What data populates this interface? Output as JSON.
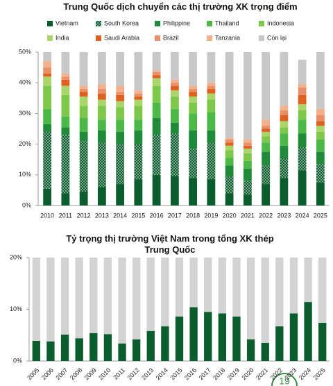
{
  "chart_data": [
    {
      "type": "stacked_bar",
      "title": "Trung Quốc dịch chuyển các thị trường XK trọng điểm",
      "categories": [
        "2010",
        "2011",
        "2012",
        "2013",
        "2014",
        "2015",
        "2016",
        "2017",
        "2018",
        "2019",
        "2020",
        "2021",
        "2022",
        "2023",
        "2024",
        "2025"
      ],
      "series": [
        {
          "name": "Vietnam",
          "color": "#0b5d2e",
          "values": [
            5.5,
            4,
            4.5,
            6,
            7,
            8.5,
            10,
            9.5,
            9,
            8.5,
            4,
            3.5,
            7,
            9,
            11.5,
            7.5
          ]
        },
        {
          "name": "South Korea",
          "color": "#0b5d2e",
          "pattern": "dots",
          "values": [
            18.5,
            19,
            16.5,
            14.5,
            13,
            11.5,
            13,
            14,
            9.5,
            12,
            5.5,
            4.5,
            6,
            6.5,
            7.5,
            6
          ]
        },
        {
          "name": "Philippine",
          "color": "#1f8a3a",
          "values": [
            2.5,
            2.5,
            3,
            4,
            4,
            4.5,
            5.5,
            3.5,
            6,
            4,
            3.5,
            4,
            4.5,
            4,
            4.5,
            4
          ]
        },
        {
          "name": "Thailand",
          "color": "#4cb848",
          "values": [
            5,
            3.5,
            4.5,
            3.5,
            4,
            3.5,
            5,
            4.5,
            5.5,
            6,
            2.5,
            2.5,
            3,
            4,
            4.5,
            4
          ]
        },
        {
          "name": "Indonesia",
          "color": "#7dc84a",
          "values": [
            7.5,
            7,
            4,
            4.5,
            4,
            4.5,
            5.5,
            4,
            3.5,
            4,
            2.5,
            2.5,
            2,
            2,
            3,
            2.5
          ]
        },
        {
          "name": "India",
          "color": "#a9d56a",
          "values": [
            3,
            3,
            3,
            2,
            2,
            2,
            2.5,
            2,
            2,
            2,
            1.5,
            1.5,
            1.5,
            2,
            2,
            2
          ]
        },
        {
          "name": "Saudi Arabia",
          "color": "#e06020",
          "values": [
            1,
            2,
            1.5,
            2,
            2,
            1,
            1,
            1.5,
            1.5,
            1.5,
            1,
            1,
            1,
            2,
            3,
            1.5
          ]
        },
        {
          "name": "Brazil",
          "color": "#e8906a",
          "values": [
            2,
            1,
            1,
            1.5,
            1,
            1,
            1,
            1,
            1,
            1,
            1,
            1,
            1,
            1.5,
            2.5,
            2
          ]
        },
        {
          "name": "Tanzania",
          "color": "#f4b08a",
          "values": [
            2,
            1,
            1,
            1.5,
            2,
            1,
            0.5,
            1,
            1,
            1,
            0.5,
            1,
            2,
            1.5,
            1,
            2
          ]
        },
        {
          "name": "Còn lại",
          "color": "#c8c8c8",
          "values": [
            3,
            7,
            11,
            10.5,
            11,
            12.5,
            6,
            9,
            11,
            10,
            28,
            28.5,
            22,
            17.5,
            8,
            18.5
          ]
        }
      ],
      "ylim": [
        0,
        50
      ],
      "yticks": [
        {
          "value": 0,
          "label": "0%"
        },
        {
          "value": 10,
          "label": "10%"
        },
        {
          "value": 20,
          "label": "20%"
        },
        {
          "value": 30,
          "label": "30%"
        },
        {
          "value": 40,
          "label": "40%"
        },
        {
          "value": 50,
          "label": "50%"
        }
      ],
      "legend": "top"
    },
    {
      "type": "stacked_bar",
      "title": "Tỷ trọng thị trường Việt Nam trong tổng XK thép Trung Quốc",
      "categories": [
        "2005",
        "2006",
        "2007",
        "2008",
        "2009",
        "2010",
        "2011",
        "2012",
        "2013",
        "2014",
        "2015",
        "2016",
        "2017",
        "2018",
        "2019",
        "2020",
        "2021",
        "2022",
        "2023",
        "2024",
        "2025"
      ],
      "series": [
        {
          "color": "#0b5d2e",
          "values": [
            3.9,
            3.8,
            5.1,
            4.4,
            5.4,
            5.2,
            3.4,
            4.2,
            5.8,
            6.7,
            8.6,
            10.4,
            9.5,
            9.2,
            8.6,
            4.2,
            3.5,
            6.7,
            9.2,
            11.4,
            7.4
          ]
        },
        {
          "color": "#d3d3d3",
          "values": [
            16.1,
            16.2,
            14.9,
            15.6,
            14.6,
            14.8,
            16.6,
            15.8,
            14.2,
            13.3,
            11.4,
            9.6,
            10.5,
            10.8,
            11.4,
            15.8,
            16.5,
            13.3,
            10.8,
            8.6,
            12.6
          ]
        }
      ],
      "ylim": [
        0,
        20
      ],
      "yticks": [
        {
          "value": 0,
          "label": "0%"
        },
        {
          "value": 10,
          "label": "10%"
        },
        {
          "value": 20,
          "label": "20%"
        }
      ]
    }
  ],
  "page_number": "19"
}
